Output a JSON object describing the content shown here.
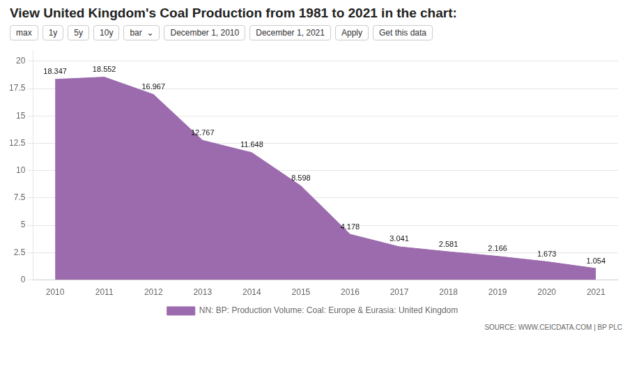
{
  "chart_data": {
    "type": "area",
    "title": "View United Kingdom's Coal Production from 1981 to 2021 in the chart:",
    "x": [
      2010,
      2011,
      2012,
      2013,
      2014,
      2015,
      2016,
      2017,
      2018,
      2019,
      2020,
      2021
    ],
    "series": [
      {
        "name": "NN: BP: Production Volume: Coal: Europe & Eurasia: United Kingdom",
        "color": "#9b6bae",
        "values": [
          18.347,
          18.552,
          16.967,
          12.767,
          11.648,
          8.598,
          4.178,
          3.041,
          2.581,
          2.166,
          1.673,
          1.054
        ]
      }
    ],
    "xlim": [
      2009.55,
      2021.45
    ],
    "xticks": [
      2010,
      2011,
      2012,
      2013,
      2014,
      2015,
      2016,
      2017,
      2018,
      2019,
      2020,
      2021
    ],
    "ylim": [
      0,
      21
    ],
    "yticks": [
      0,
      2.5,
      5,
      7.5,
      10,
      12.5,
      15,
      17.5,
      20
    ],
    "grid": true,
    "legend": "bottom",
    "data_labels": true,
    "annotations": [
      "max",
      "1y",
      "5y",
      "10y",
      "bar  ⌄",
      "December 1, 2010",
      "December 1, 2021",
      "Apply",
      "Get this data",
      "SOURCE: WWW.CEICDATA.COM | BP PLC"
    ]
  }
}
